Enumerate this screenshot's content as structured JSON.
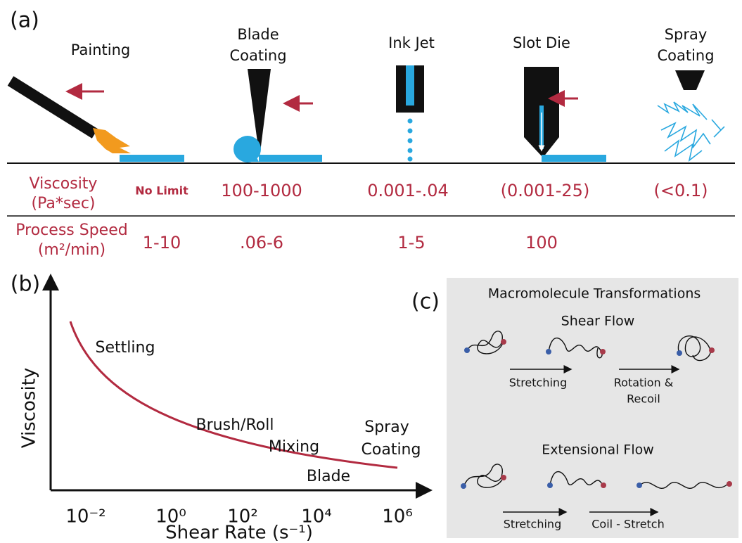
{
  "panel_a": {
    "label": "(a)",
    "methods": [
      [
        "Painting"
      ],
      [
        "Blade",
        "Coating"
      ],
      [
        "Ink Jet"
      ],
      [
        "Slot Die"
      ],
      [
        "Spray",
        "Coating"
      ]
    ],
    "viscosity": {
      "label": [
        "Viscosity",
        "(Pa*sec)"
      ],
      "values": [
        "No Limit",
        "100-1000",
        "0.001-.04",
        "(0.001-25)",
        "(<0.1)"
      ]
    },
    "process_speed": {
      "label": [
        "Process Speed",
        "(m²/min)"
      ],
      "values": [
        "1-10",
        ".06-6",
        "1-5",
        "100"
      ]
    }
  },
  "panel_b": {
    "label": "(b)",
    "y_axis": "Viscosity",
    "x_axis": "Shear Rate (s⁻¹)",
    "x_ticks": [
      "10⁻²",
      "10⁰",
      "10²",
      "10⁴",
      "10⁶"
    ],
    "regions": [
      "Settling",
      "Brush/Roll",
      "Mixing",
      "Blade",
      [
        "Spray",
        "Coating"
      ]
    ]
  },
  "panel_c": {
    "label": "(c)",
    "title": "Macromolecule Transformations",
    "shear_flow": {
      "title": "Shear Flow",
      "steps": [
        "Stretching",
        [
          "Rotation &",
          "Recoil"
        ]
      ]
    },
    "extensional_flow": {
      "title": "Extensional Flow",
      "steps": [
        "Stretching",
        "Coil - Stretch"
      ]
    }
  }
}
